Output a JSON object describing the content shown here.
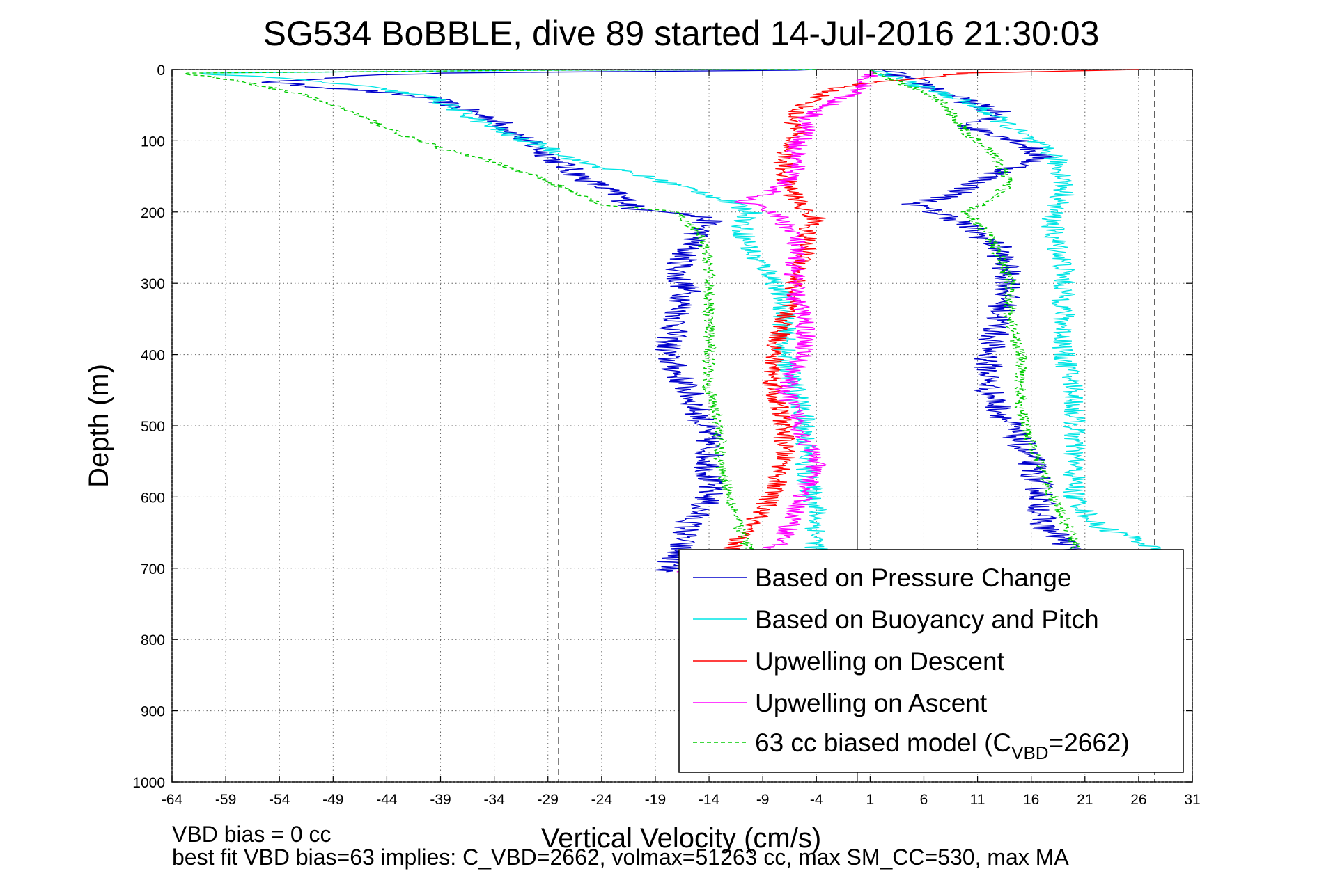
{
  "chart_data": {
    "type": "line",
    "title": "SG534 BoBBLE, dive 89 started 14-Jul-2016 21:30:03",
    "xlabel": "Vertical Velocity (cm/s)",
    "ylabel": "Depth (m)",
    "xlim": [
      -64,
      31
    ],
    "ylim": [
      0,
      1000
    ],
    "y_reversed": true,
    "grid": true,
    "legend_position": "bottom-right",
    "x_ticks": [
      "-64",
      "-59",
      "-54",
      "-49",
      "-44",
      "-39",
      "-34",
      "-29",
      "-24",
      "-19",
      "-14",
      "-9",
      "-4",
      "1",
      "6",
      "11",
      "16",
      "21",
      "26",
      "31"
    ],
    "y_ticks": [
      "0",
      "100",
      "200",
      "300",
      "400",
      "500",
      "600",
      "700",
      "800",
      "900",
      "1000"
    ],
    "reference_lines": {
      "solid_x": -0.2,
      "dashed_x": [
        -28,
        27.5
      ]
    },
    "series": [
      {
        "name": "Based on Pressure Change",
        "color": "#0000cc",
        "style": "solid",
        "noise": 0.7,
        "points": [
          [
            [
              -4,
              0
            ],
            [
              -6,
              1
            ],
            [
              -40,
              5
            ],
            [
              -50,
              12
            ],
            [
              -55,
              18
            ],
            [
              -52,
              22
            ],
            [
              -46,
              30
            ],
            [
              -40,
              40
            ],
            [
              -37,
              55
            ],
            [
              -34,
              70
            ],
            [
              -32,
              90
            ],
            [
              -30,
              110
            ],
            [
              -28,
              130
            ],
            [
              -26,
              150
            ],
            [
              -22,
              180
            ],
            [
              -21,
              195
            ],
            [
              -17,
              200
            ],
            [
              -14,
              210
            ],
            [
              -16,
              250
            ],
            [
              -17,
              290
            ],
            [
              -16,
              310
            ],
            [
              -17,
              350
            ],
            [
              -18,
              400
            ],
            [
              -16,
              450
            ],
            [
              -15,
              480
            ],
            [
              -14,
              520
            ],
            [
              -14,
              550
            ],
            [
              -14,
              600
            ],
            [
              -16,
              640
            ],
            [
              -17,
              680
            ],
            [
              -18,
              705
            ]
          ],
          [
            [
              2,
              0
            ],
            [
              4,
              10
            ],
            [
              6,
              20
            ],
            [
              9,
              40
            ],
            [
              13,
              60
            ],
            [
              10,
              80
            ],
            [
              15,
              100
            ],
            [
              17,
              125
            ],
            [
              12,
              150
            ],
            [
              9,
              175
            ],
            [
              5,
              190
            ],
            [
              9,
              210
            ],
            [
              13,
              250
            ],
            [
              14,
              300
            ],
            [
              13,
              350
            ],
            [
              12,
              400
            ],
            [
              12,
              450
            ],
            [
              14,
              500
            ],
            [
              16,
              550
            ],
            [
              17,
              600
            ],
            [
              17,
              640
            ],
            [
              19,
              660
            ],
            [
              20,
              680
            ]
          ]
        ]
      },
      {
        "name": "Based on Buoyancy and Pitch",
        "color": "#00e5e5",
        "style": "solid",
        "noise": 0.55,
        "points": [
          [
            [
              -4,
              0
            ],
            [
              -30,
              1
            ],
            [
              -62,
              5
            ],
            [
              -54,
              12
            ],
            [
              -47,
              22
            ],
            [
              -40,
              38
            ],
            [
              -37,
              60
            ],
            [
              -33,
              90
            ],
            [
              -29,
              110
            ],
            [
              -26,
              130
            ],
            [
              -20,
              150
            ],
            [
              -14,
              175
            ],
            [
              -10,
              200
            ],
            [
              -11,
              220
            ],
            [
              -10,
              260
            ],
            [
              -8,
              290
            ],
            [
              -7,
              330
            ],
            [
              -7,
              400
            ],
            [
              -6,
              450
            ],
            [
              -5,
              500
            ],
            [
              -5,
              560
            ],
            [
              -4,
              620
            ],
            [
              -4,
              660
            ],
            [
              -4,
              680
            ]
          ],
          [
            [
              1,
              0
            ],
            [
              3,
              10
            ],
            [
              5,
              20
            ],
            [
              9,
              40
            ],
            [
              12,
              60
            ],
            [
              14,
              80
            ],
            [
              16,
              100
            ],
            [
              18,
              120
            ],
            [
              19,
              150
            ],
            [
              19,
              175
            ],
            [
              18,
              200
            ],
            [
              18,
              230
            ],
            [
              19,
              270
            ],
            [
              19,
              300
            ],
            [
              19,
              350
            ],
            [
              19,
              400
            ],
            [
              20,
              450
            ],
            [
              20,
              500
            ],
            [
              20,
              550
            ],
            [
              20,
              600
            ],
            [
              22,
              640
            ],
            [
              26,
              660
            ],
            [
              28,
              680
            ],
            [
              30,
              700
            ]
          ]
        ]
      },
      {
        "name": "Upwelling on Descent",
        "color": "#ff0000",
        "style": "solid",
        "noise": 0.5,
        "points": [
          [
            [
              26,
              0
            ],
            [
              10,
              5
            ],
            [
              3,
              15
            ],
            [
              -2,
              25
            ],
            [
              -4,
              40
            ],
            [
              -6,
              60
            ],
            [
              -6,
              90
            ],
            [
              -7,
              120
            ],
            [
              -7,
              150
            ],
            [
              -6,
              180
            ],
            [
              -5,
              200
            ],
            [
              -4,
              210
            ],
            [
              -5,
              230
            ],
            [
              -5,
              260
            ],
            [
              -6,
              300
            ],
            [
              -7,
              350
            ],
            [
              -8,
              400
            ],
            [
              -8,
              450
            ],
            [
              -7,
              500
            ],
            [
              -7,
              550
            ],
            [
              -8,
              590
            ],
            [
              -9,
              620
            ],
            [
              -11,
              650
            ],
            [
              -12,
              680
            ]
          ]
        ]
      },
      {
        "name": "Upwelling on Ascent",
        "color": "#ff00ff",
        "style": "solid",
        "noise": 0.5,
        "points": [
          [
            [
              1,
              0
            ],
            [
              1,
              10
            ],
            [
              0,
              30
            ],
            [
              -3,
              50
            ],
            [
              -5,
              70
            ],
            [
              -5,
              90
            ],
            [
              -6,
              110
            ],
            [
              -6,
              130
            ],
            [
              -6,
              150
            ],
            [
              -8,
              170
            ],
            [
              -11,
              185
            ],
            [
              -8,
              200
            ],
            [
              -6,
              230
            ],
            [
              -6,
              260
            ],
            [
              -6,
              290
            ],
            [
              -6,
              320
            ],
            [
              -5,
              350
            ],
            [
              -5,
              390
            ],
            [
              -6,
              420
            ],
            [
              -7,
              450
            ],
            [
              -6,
              480
            ],
            [
              -5,
              520
            ],
            [
              -4,
              550
            ],
            [
              -5,
              590
            ],
            [
              -6,
              620
            ],
            [
              -7,
              660
            ],
            [
              -10,
              690
            ],
            [
              -13,
              700
            ],
            [
              -17,
              705
            ]
          ]
        ]
      },
      {
        "name": "63 cc biased model (C",
        "name_sub": "VBD",
        "name_tail": "=2662)",
        "color": "#00cc00",
        "style": "dashed",
        "noise": 0.3,
        "points": [
          [
            [
              -4,
              0
            ],
            [
              -30,
              1
            ],
            [
              -63,
              5
            ],
            [
              -58,
              15
            ],
            [
              -52,
              35
            ],
            [
              -48,
              55
            ],
            [
              -45,
              75
            ],
            [
              -42,
              95
            ],
            [
              -38,
              115
            ],
            [
              -34,
              130
            ],
            [
              -30,
              150
            ],
            [
              -27,
              170
            ],
            [
              -24,
              190
            ],
            [
              -17,
              200
            ],
            [
              -15,
              230
            ],
            [
              -14,
              270
            ],
            [
              -14,
              300
            ],
            [
              -14,
              350
            ],
            [
              -14,
              400
            ],
            [
              -14,
              450
            ],
            [
              -13,
              500
            ],
            [
              -13,
              550
            ],
            [
              -12,
              600
            ],
            [
              -11,
              650
            ],
            [
              -10,
              680
            ]
          ],
          [
            [
              1,
              0
            ],
            [
              3,
              15
            ],
            [
              6,
              30
            ],
            [
              8,
              50
            ],
            [
              9,
              70
            ],
            [
              10,
              90
            ],
            [
              12,
              110
            ],
            [
              13,
              130
            ],
            [
              14,
              160
            ],
            [
              12,
              185
            ],
            [
              10,
              200
            ],
            [
              12,
              230
            ],
            [
              13,
              260
            ],
            [
              14,
              300
            ],
            [
              14,
              350
            ],
            [
              15,
              400
            ],
            [
              15,
              450
            ],
            [
              15,
              480
            ],
            [
              16,
              520
            ],
            [
              17,
              560
            ],
            [
              18,
              600
            ],
            [
              19,
              630
            ],
            [
              20,
              660
            ],
            [
              20,
              680
            ]
          ]
        ]
      }
    ]
  },
  "footer": {
    "line1": "VBD bias = 0 cc",
    "line2": "best fit VBD bias=63 implies: C_VBD=2662, volmax=51263 cc, max SM_CC=530, max MA"
  }
}
